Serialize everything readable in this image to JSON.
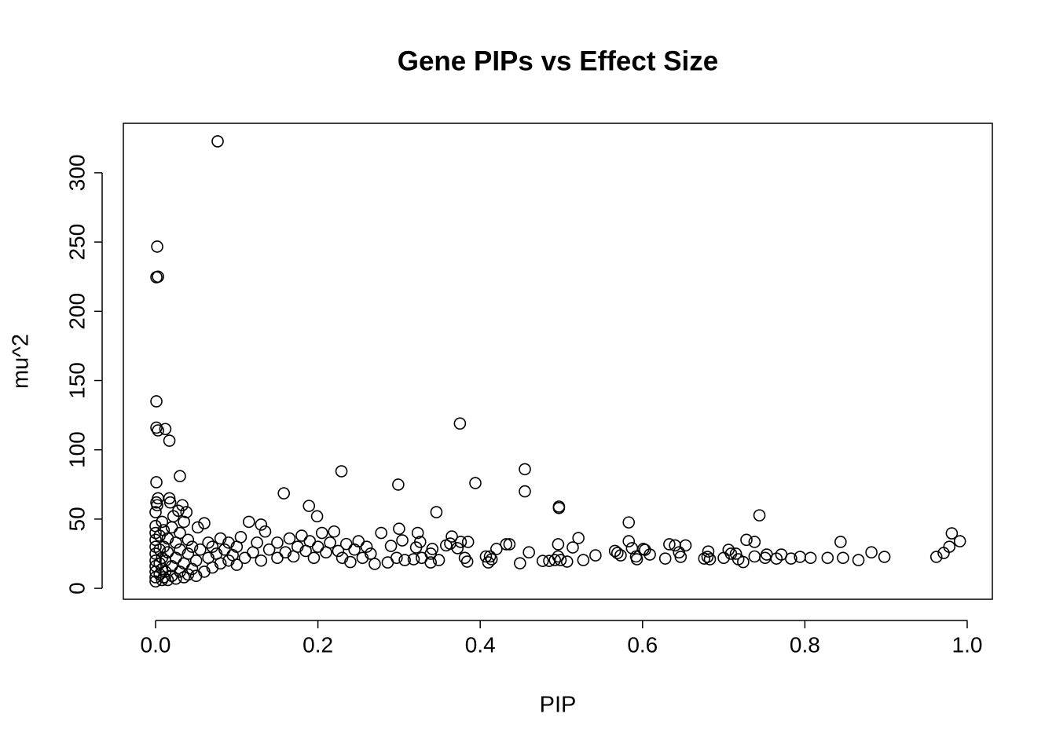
{
  "chart_data": {
    "type": "scatter",
    "title": "Gene PIPs vs Effect Size",
    "x_label": "PIP",
    "y_label": "mu^2",
    "xlim": [
      -0.0397,
      1.031
    ],
    "ylim": [
      -7.9,
      335.7
    ],
    "xticks": [
      {
        "value": 0,
        "label": "0.0"
      },
      0.2,
      0.4,
      0.6,
      0.8,
      {
        "value": 1,
        "label": "1.0"
      }
    ],
    "yticks": [
      0,
      50,
      100,
      150,
      200,
      250,
      300
    ],
    "color": "#000000",
    "grid": false,
    "x": [
      0.0765,
      0.002,
      0.001,
      0.003,
      0.001,
      0.001,
      0.003,
      0.012,
      0.017,
      0.001,
      0.03,
      0.229,
      0.299,
      0.375,
      0.394,
      0.455,
      0.455,
      0.158,
      0.189,
      0.199,
      0.346,
      0.497,
      0.497,
      0.744,
      0.583,
      0.844,
      0.981,
      0.991,
      0.978,
      0.971,
      0.962,
      0.898,
      0.882,
      0.866,
      0.847,
      0.828,
      0.807,
      0.794,
      0.783,
      0.771,
      0.765,
      0.753,
      0.751,
      0.738,
      0.738,
      0.728,
      0.724,
      0.718,
      0.715,
      0.709,
      0.706,
      0.7,
      0.683,
      0.68,
      0.681,
      0.676,
      0.653,
      0.647,
      0.645,
      0.64,
      0.633,
      0.628,
      0.609,
      0.603,
      0.601,
      0.593,
      0.592,
      0.587,
      0.583,
      0.573,
      0.569,
      0.566,
      0.542,
      0.527,
      0.521,
      0.514,
      0.507,
      0.496,
      0.499,
      0.496,
      0.492,
      0.485,
      0.477,
      0.46,
      0.449,
      0.436,
      0.432,
      0.42,
      0.414,
      0.412,
      0.41,
      0.407,
      0.385,
      0.384,
      0.381,
      0.376,
      0.372,
      0.365,
      0.363,
      0.358,
      0.349,
      0.341,
      0.339,
      0.339,
      0.328,
      0.326,
      0.321,
      0.323,
      0.318,
      0.307,
      0.304,
      0.3,
      0.297,
      0.29,
      0.286,
      0.278,
      0.27,
      0,
      0,
      0,
      0,
      0,
      0,
      0,
      0,
      0,
      0,
      0,
      0.001,
      0.003,
      0.002,
      0.005,
      0.005,
      0.005,
      0.005,
      0.008,
      0.008,
      0.008,
      0.008,
      0.01,
      0.01,
      0.01,
      0.012,
      0.012,
      0.015,
      0.015,
      0.015,
      0.017,
      0.018,
      0.02,
      0.02,
      0.02,
      0.022,
      0.025,
      0.025,
      0.025,
      0.028,
      0.03,
      0.03,
      0.03,
      0.033,
      0.035,
      0.035,
      0.035,
      0.038,
      0.04,
      0.04,
      0.04,
      0.045,
      0.045,
      0.05,
      0.05,
      0.052,
      0.055,
      0.06,
      0.06,
      0.065,
      0.065,
      0.07,
      0.07,
      0.075,
      0.08,
      0.08,
      0.085,
      0.09,
      0.09,
      0.095,
      0.1,
      0.1,
      0.105,
      0.11,
      0.115,
      0.12,
      0.125,
      0.13,
      0.13,
      0.135,
      0.14,
      0.15,
      0.15,
      0.16,
      0.165,
      0.17,
      0.175,
      0.18,
      0.185,
      0.19,
      0.195,
      0.2,
      0.205,
      0.21,
      0.215,
      0.22,
      0.225,
      0.23,
      0.235,
      0.24,
      0.245,
      0.25,
      0.255,
      0.26,
      0.265
    ],
    "values": [
      322.7,
      246.7,
      224.6,
      225,
      135,
      116,
      114,
      115,
      106.6,
      76.6,
      81,
      84.5,
      74.9,
      119,
      76,
      86,
      70,
      68.6,
      59.5,
      52,
      55,
      59,
      58,
      52.7,
      47.6,
      33.5,
      39.7,
      34,
      30,
      25.5,
      22.7,
      22.7,
      26,
      20.4,
      22,
      22,
      22,
      22.7,
      21.5,
      24.4,
      21.5,
      24.4,
      22,
      23,
      33.5,
      35,
      19,
      21,
      25,
      25,
      27.8,
      22,
      21,
      22.7,
      26.6,
      21.5,
      31,
      22.7,
      26,
      31,
      31.8,
      21.5,
      24.4,
      27.8,
      28.4,
      21,
      23,
      29,
      34,
      23.8,
      25.5,
      27,
      23.8,
      20.4,
      36.3,
      29.5,
      19.3,
      31.8,
      20.4,
      23,
      20.4,
      19.8,
      19.8,
      26,
      18.1,
      31.8,
      31.8,
      28.4,
      21,
      23,
      18.7,
      23,
      33.5,
      19.3,
      22,
      33.5,
      29,
      37.4,
      32.3,
      31,
      20.4,
      28.4,
      18.7,
      25,
      22,
      33.5,
      29.5,
      40,
      21,
      20.4,
      34.6,
      43,
      22,
      30.6,
      18.7,
      40,
      17.6,
      5,
      8,
      12,
      16,
      20,
      25,
      30,
      35,
      40,
      45,
      55,
      62,
      65,
      60,
      10,
      18,
      28,
      38,
      6,
      14,
      22,
      48,
      8,
      30,
      42,
      12,
      20,
      6,
      26,
      36,
      65,
      62,
      9,
      16,
      44,
      52,
      7,
      22,
      33,
      56,
      12,
      28,
      40,
      60,
      8,
      18,
      48,
      55,
      10,
      25,
      35,
      14,
      30,
      9,
      20,
      44,
      28,
      12,
      47,
      22,
      33,
      15,
      30,
      25,
      18,
      36,
      28,
      20,
      33,
      24,
      17,
      30,
      37,
      22,
      48,
      26,
      33,
      46,
      20,
      41,
      28,
      22,
      33,
      26,
      36,
      23,
      30,
      38,
      27,
      34,
      22,
      30,
      40,
      26,
      33,
      41,
      27,
      22,
      32,
      19,
      28,
      34,
      22,
      30,
      25
    ]
  }
}
